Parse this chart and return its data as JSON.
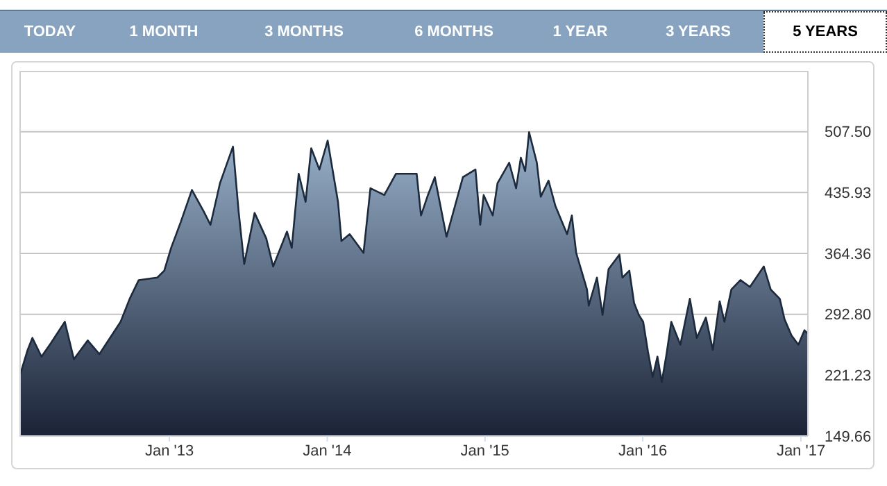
{
  "chart_data": {
    "type": "area",
    "annotations": [
      "TODAY",
      "1 MONTH",
      "3 MONTHS",
      "6 MONTHS",
      "1 YEAR",
      "3 YEARS",
      "5 YEARS"
    ],
    "x": [
      "2012-01-20",
      "2012-02-08",
      "2012-02-19",
      "2012-03-11",
      "2012-04-02",
      "2012-05-04",
      "2012-05-25",
      "2012-06-26",
      "2012-07-23",
      "2012-09-10",
      "2012-10-01",
      "2012-10-22",
      "2012-12-04",
      "2012-12-20",
      "2013-01-05",
      "2013-01-27",
      "2013-02-22",
      "2013-03-21",
      "2013-04-06",
      "2013-04-28",
      "2013-05-28",
      "2013-06-10",
      "2013-06-23",
      "2013-07-17",
      "2013-08-13",
      "2013-08-29",
      "2013-09-30",
      "2013-10-11",
      "2013-10-27",
      "2013-11-12",
      "2013-11-25",
      "2013-12-14",
      "2014-01-02",
      "2014-01-26",
      "2014-02-03",
      "2014-02-22",
      "2014-03-26",
      "2014-04-11",
      "2014-05-13",
      "2014-06-09",
      "2014-07-05",
      "2014-07-27",
      "2014-08-06",
      "2014-08-22",
      "2014-09-07",
      "2014-10-04",
      "2014-11-11",
      "2014-12-10",
      "2014-12-21",
      "2014-12-29",
      "2015-01-19",
      "2015-01-30",
      "2015-02-26",
      "2015-03-14",
      "2015-03-25",
      "2015-04-04",
      "2015-04-13",
      "2015-05-01",
      "2015-05-10",
      "2015-05-28",
      "2015-06-13",
      "2015-07-10",
      "2015-07-21",
      "2015-07-31",
      "2015-08-25",
      "2015-08-29",
      "2015-09-17",
      "2015-09-30",
      "2015-10-14",
      "2015-11-08",
      "2015-11-15",
      "2015-12-01",
      "2015-12-12",
      "2015-12-23",
      "2016-01-02",
      "2016-01-13",
      "2016-01-24",
      "2016-02-04",
      "2016-02-14",
      "2016-02-25",
      "2016-03-07",
      "2016-03-28",
      "2016-04-19",
      "2016-05-05",
      "2016-05-26",
      "2016-06-11",
      "2016-06-27",
      "2016-07-08",
      "2016-07-24",
      "2016-08-14",
      "2016-09-05",
      "2016-10-07",
      "2016-10-23",
      "2016-11-13",
      "2016-11-24",
      "2016-12-10",
      "2016-12-26",
      "2017-01-09",
      "2017-01-17"
    ],
    "series": [
      {
        "color": "#1c2a3d",
        "values": [
          219,
          251,
          265,
          243,
          259,
          284,
          240,
          262,
          246,
          284,
          311,
          333,
          336,
          344,
          371,
          401,
          439,
          414,
          398,
          447,
          490,
          414,
          352,
          412,
          382,
          349,
          390,
          371,
          458,
          425,
          488,
          463,
          497,
          425,
          379,
          387,
          365,
          441,
          433,
          458,
          458,
          458,
          409,
          433,
          454,
          384,
          454,
          463,
          398,
          433,
          409,
          447,
          471,
          441,
          477,
          461,
          507,
          471,
          431,
          450,
          420,
          387,
          409,
          365,
          322,
          303,
          336,
          292,
          346,
          363,
          336,
          344,
          306,
          292,
          284,
          249,
          219,
          243,
          213,
          246,
          284,
          257,
          311,
          265,
          289,
          251,
          308,
          284,
          322,
          333,
          325,
          349,
          322,
          311,
          287,
          268,
          257,
          274,
          270
        ]
      }
    ],
    "xlim": [
      "2012-01-20",
      "2017-01-17"
    ],
    "xticks": [
      {
        "value": "2013-01-01",
        "label": "Jan '13"
      },
      {
        "value": "2014-01-01",
        "label": "Jan '14"
      },
      {
        "value": "2015-01-01",
        "label": "Jan '15"
      },
      {
        "value": "2016-01-01",
        "label": "Jan '16"
      },
      {
        "value": "2017-01-01",
        "label": "Jan '17"
      }
    ],
    "ylim": [
      149.66,
      579.07
    ],
    "yticks": [
      149.66,
      221.23,
      {
        "value": 292.8,
        "label": "292.80"
      },
      364.36,
      435.93,
      {
        "value": 507.5,
        "label": "507.50"
      }
    ],
    "grid": "y",
    "legend": false,
    "marker": "none",
    "line_style": "solid"
  }
}
